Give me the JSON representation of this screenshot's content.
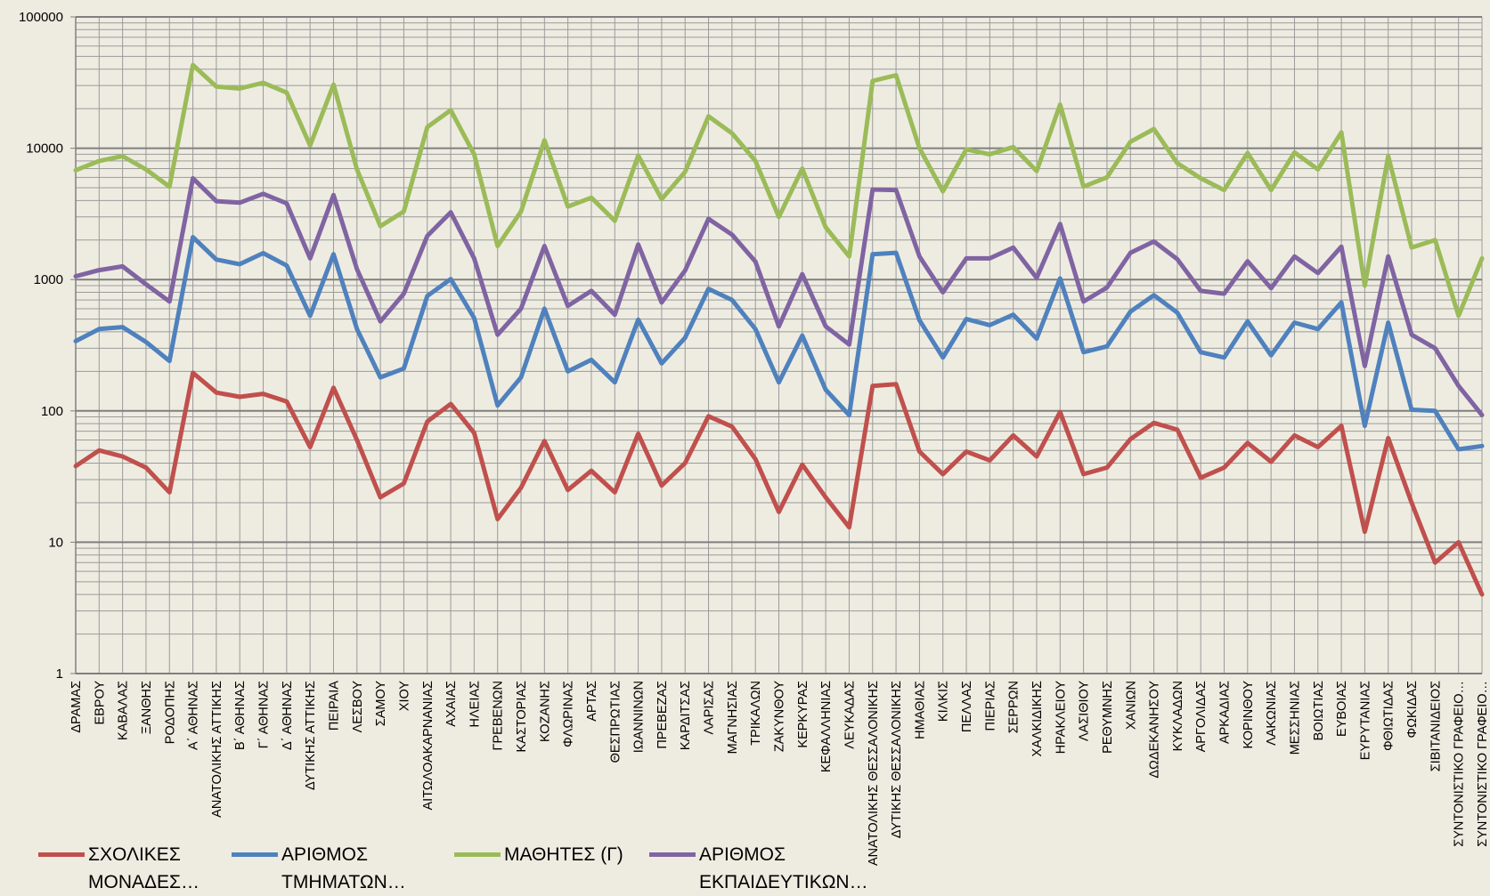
{
  "chart_data": {
    "type": "line",
    "log_scale": true,
    "grid": true,
    "legend": "bottom",
    "ylim": [
      1,
      100000
    ],
    "yticks": [
      1,
      10,
      100,
      1000,
      10000,
      100000
    ],
    "categories": [
      "ΔΡΑΜΑΣ",
      "ΕΒΡΟΥ",
      "ΚΑΒΑΛΑΣ",
      "ΞΑΝΘΗΣ",
      "ΡΟΔΟΠΗΣ",
      "Α΄ ΑΘΗΝΑΣ",
      "ΑΝΑΤΟΛΙΚΗΣ ΑΤΤΙΚΗΣ",
      "Β΄ ΑΘΗΝΑΣ",
      "Γ΄ ΑΘΗΝΑΣ",
      "Δ΄ ΑΘΗΝΑΣ",
      "ΔΥΤΙΚΗΣ ΑΤΤΙΚΗΣ",
      "ΠΕΙΡΑΙΑ",
      "ΛΕΣΒΟΥ",
      "ΣΑΜΟΥ",
      "ΧΙΟΥ",
      "ΑΙΤΩΛΟΑΚΑΡΝΑΝΙΑΣ",
      "ΑΧΑΙΑΣ",
      "ΗΛΕΙΑΣ",
      "ΓΡΕΒΕΝΩΝ",
      "ΚΑΣΤΟΡΙΑΣ",
      "ΚΟΖΑΝΗΣ",
      "ΦΛΩΡΙΝΑΣ",
      "ΑΡΤΑΣ",
      "ΘΕΣΠΡΩΤΙΑΣ",
      "ΙΩΑΝΝΙΝΩΝ",
      "ΠΡΕΒΕΖΑΣ",
      "ΚΑΡΔΙΤΣΑΣ",
      "ΛΑΡΙΣΑΣ",
      "ΜΑΓΝΗΣΙΑΣ",
      "ΤΡΙΚΑΛΩΝ",
      "ΖΑΚΥΝΘΟΥ",
      "ΚΕΡΚΥΡΑΣ",
      "ΚΕΦΑΛΛΗΝΙΑΣ",
      "ΛΕΥΚΑΔΑΣ",
      "ΑΝΑΤΟΛΙΚΗΣ ΘΕΣΣΑΛΟΝΙΚΗΣ",
      "ΔΥΤΙΚΗΣ ΘΕΣΣΑΛΟΝΙΚΗΣ",
      "ΗΜΑΘΙΑΣ",
      "ΚΙΛΚΙΣ",
      "ΠΕΛΛΑΣ",
      "ΠΙΕΡΙΑΣ",
      "ΣΕΡΡΩΝ",
      "ΧΑΛΚΙΔΙΚΗΣ",
      "ΗΡΑΚΛΕΙΟΥ",
      "ΛΑΣΙΘΙΟΥ",
      "ΡΕΘΥΜΝΗΣ",
      "ΧΑΝΙΩΝ",
      "ΔΩΔΕΚΑΝΗΣΟΥ",
      "ΚΥΚΛΑΔΩΝ",
      "ΑΡΓΟΛΙΔΑΣ",
      "ΑΡΚΑΔΙΑΣ",
      "ΚΟΡΙΝΘΟΥ",
      "ΛΑΚΩΝΙΑΣ",
      "ΜΕΣΣΗΝΙΑΣ",
      "ΒΟΙΩΤΙΑΣ",
      "ΕΥΒΟΙΑΣ",
      "ΕΥΡΥΤΑΝΙΑΣ",
      "ΦΘΙΩΤΙΔΑΣ",
      "ΦΩΚΙΔΑΣ",
      "ΣΙΒΙΤΑΝΙΔΕΙΟΣ",
      "ΣΥΝΤΟΝΙΣΤΙΚΟ ΓΡΑΦΕΙΟ…",
      "ΣΥΝΤΟΝΙΣΤΙΚΟ ΓΡΑΦΕΙΟ…"
    ],
    "series": [
      {
        "name": "ΣΧΟΛΙΚΕΣ ΜΟΝΑΔΕΣ…",
        "color": "#c0504d",
        "values": [
          38,
          50,
          45,
          37,
          24,
          195,
          138,
          128,
          135,
          118,
          53,
          150,
          60,
          22,
          28,
          83,
          113,
          68,
          15,
          26,
          59,
          25,
          35,
          24,
          67,
          27,
          40,
          91,
          76,
          43,
          17,
          39,
          22,
          13,
          155,
          160,
          49,
          33,
          49,
          42,
          65,
          45,
          98,
          33,
          37,
          61,
          81,
          72,
          31,
          37,
          57,
          41,
          65,
          53,
          77,
          12,
          62,
          20,
          7,
          10,
          4
        ]
      },
      {
        "name": "ΑΡΙΘΜΟΣ ΤΜΗΜΑΤΩΝ…",
        "color": "#4f81bd",
        "values": [
          340,
          420,
          435,
          335,
          240,
          2100,
          1420,
          1310,
          1590,
          1280,
          530,
          1560,
          420,
          180,
          210,
          750,
          1010,
          510,
          110,
          180,
          600,
          200,
          245,
          165,
          495,
          230,
          360,
          850,
          700,
          420,
          165,
          375,
          145,
          93,
          1560,
          1600,
          490,
          255,
          500,
          450,
          540,
          355,
          1020,
          280,
          310,
          570,
          760,
          560,
          280,
          255,
          480,
          265,
          470,
          420,
          670,
          77,
          470,
          102,
          100,
          51,
          54
        ]
      },
      {
        "name": "ΜΑΘΗΤΕΣ (Γ)",
        "color": "#9bbb59",
        "values": [
          6800,
          8000,
          8700,
          6900,
          5100,
          43000,
          29500,
          28500,
          31500,
          26500,
          10500,
          30500,
          6900,
          2550,
          3300,
          14500,
          19500,
          9000,
          1800,
          3300,
          11500,
          3600,
          4200,
          2800,
          8800,
          4100,
          6600,
          17500,
          13000,
          8000,
          3000,
          7000,
          2500,
          1500,
          32500,
          36000,
          10000,
          4700,
          9800,
          9000,
          10200,
          6700,
          21500,
          5100,
          6000,
          11200,
          14000,
          7700,
          5900,
          4800,
          9200,
          4800,
          9300,
          6900,
          13200,
          900,
          8700,
          1750,
          2000,
          530,
          1450
        ]
      },
      {
        "name": "ΑΡΙΘΜΟΣ ΕΚΠΑΙΔΕΥΤΙΚΩΝ…",
        "color": "#8064a2",
        "values": [
          1060,
          1180,
          1260,
          920,
          680,
          5900,
          3950,
          3850,
          4500,
          3800,
          1450,
          4400,
          1200,
          480,
          780,
          2150,
          3250,
          1450,
          380,
          600,
          1800,
          630,
          820,
          540,
          1850,
          670,
          1170,
          2900,
          2200,
          1370,
          440,
          1100,
          440,
          320,
          4850,
          4800,
          1500,
          800,
          1450,
          1450,
          1750,
          1030,
          2650,
          680,
          870,
          1600,
          1950,
          1430,
          820,
          780,
          1380,
          860,
          1500,
          1120,
          1780,
          220,
          1500,
          380,
          300,
          155,
          93
        ]
      }
    ]
  }
}
